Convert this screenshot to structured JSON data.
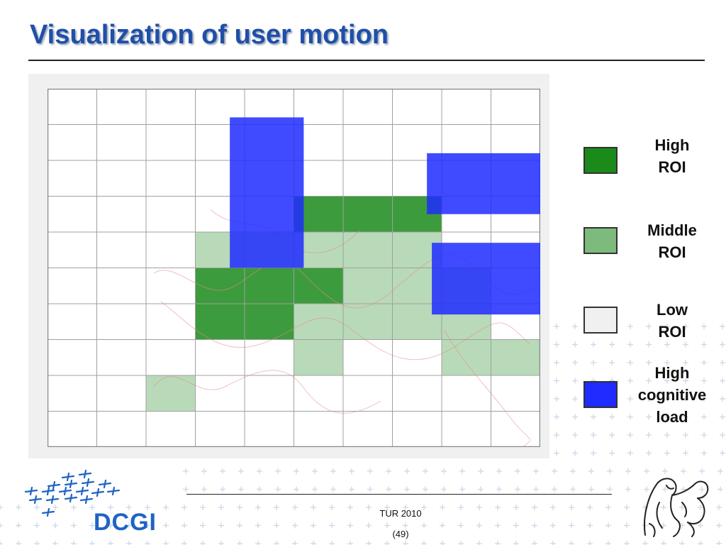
{
  "slide": {
    "title": "Visualization of user motion"
  },
  "colors": {
    "title": "#1f4fa8",
    "high_roi": "#1a8a1a",
    "middle_roi": "#7dbb7d",
    "low_roi": "#f0f0f0",
    "high_cognitive_load": "#1f2bff",
    "plus_marks": "#c8d8ec"
  },
  "legend": [
    {
      "label": "High\nROI",
      "color": "#1a8a1a"
    },
    {
      "label": "Middle\nROI",
      "color": "#7dbb7d"
    },
    {
      "label": "Low\nROI",
      "color": "#f0f0f0"
    },
    {
      "label": "High\ncognitive\nload",
      "color": "#1f2bff"
    }
  ],
  "heatmap": {
    "columns": 10,
    "rows": 10,
    "cells_high_roi": [
      [
        5,
        3
      ],
      [
        6,
        3
      ],
      [
        7,
        3
      ],
      [
        3,
        5
      ],
      [
        4,
        5
      ],
      [
        5,
        5
      ],
      [
        3,
        6
      ],
      [
        4,
        6
      ]
    ],
    "cells_middle_roi": [
      [
        3,
        4
      ],
      [
        4,
        4
      ],
      [
        5,
        4
      ],
      [
        6,
        4
      ],
      [
        7,
        4
      ],
      [
        6,
        5
      ],
      [
        7,
        5
      ],
      [
        5,
        6
      ],
      [
        6,
        6
      ],
      [
        7,
        6
      ],
      [
        8,
        6
      ],
      [
        5,
        7
      ],
      [
        2,
        8
      ],
      [
        8,
        7
      ],
      [
        9,
        7
      ],
      [
        8,
        5
      ]
    ],
    "cognitive_load_regions": [
      {
        "col": 3.7,
        "row": 0.8,
        "w": 1.5,
        "h": 4.2
      },
      {
        "col": 7.7,
        "row": 1.8,
        "w": 2.3,
        "h": 1.7
      },
      {
        "col": 7.8,
        "row": 4.3,
        "w": 2.2,
        "h": 2.0
      }
    ]
  },
  "footer": {
    "course": "TUR 2010",
    "page": "(49)",
    "logo_text": "DCGI"
  }
}
